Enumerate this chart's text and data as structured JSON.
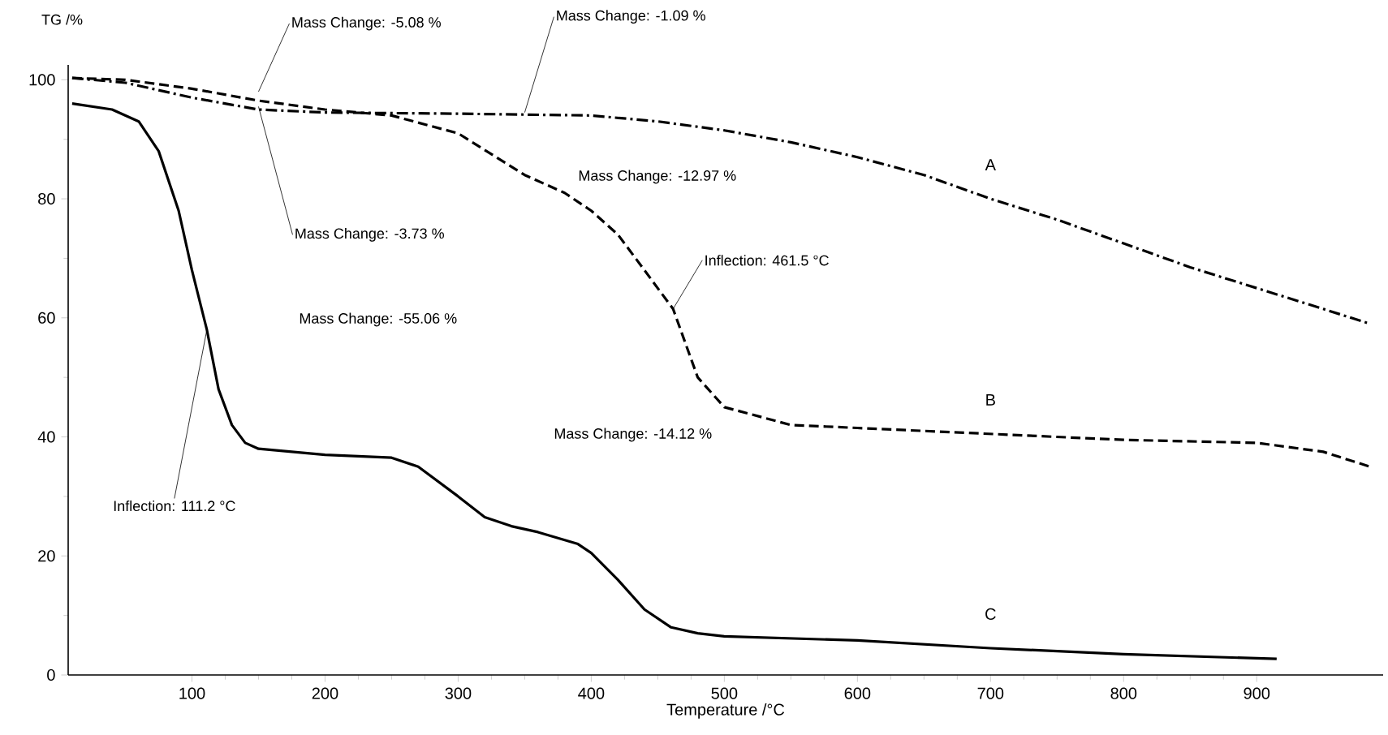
{
  "chart_data": {
    "type": "line",
    "xlabel": "Temperature /°C",
    "ylabel": "TG /%",
    "xlim": [
      7,
      995
    ],
    "ylim": [
      0,
      102.5
    ],
    "xticks": [
      100,
      200,
      300,
      400,
      500,
      600,
      700,
      800,
      900
    ],
    "yticks": [
      0,
      20,
      40,
      60,
      80,
      100
    ],
    "grid": false,
    "legend": false,
    "marker": "none",
    "series": [
      {
        "name": "A",
        "color": "#000000",
        "line_style": "dashdot",
        "x": [
          10,
          50,
          100,
          150,
          200,
          300,
          400,
          450,
          500,
          550,
          600,
          650,
          700,
          750,
          800,
          850,
          900,
          950,
          985
        ],
        "values": [
          100.3,
          99.5,
          97,
          95,
          94.5,
          94.3,
          94,
          93,
          91.5,
          89.5,
          87,
          84,
          80,
          76.5,
          72.5,
          68.5,
          65,
          61.5,
          59
        ]
      },
      {
        "name": "B",
        "color": "#000000",
        "line_style": "dashed",
        "x": [
          10,
          50,
          100,
          150,
          200,
          250,
          300,
          350,
          380,
          400,
          420,
          440,
          461.5,
          480,
          500,
          550,
          600,
          700,
          800,
          900,
          950,
          985
        ],
        "values": [
          100.3,
          100,
          98.5,
          96.5,
          95,
          94,
          91,
          84,
          81,
          78,
          74,
          68,
          61.5,
          50,
          45,
          42,
          41.5,
          40.5,
          39.5,
          39,
          37.5,
          35
        ]
      },
      {
        "name": "C",
        "color": "#000000",
        "line_style": "solid",
        "x": [
          10,
          40,
          60,
          75,
          90,
          100,
          111.2,
          120,
          130,
          140,
          150,
          200,
          250,
          270,
          300,
          320,
          340,
          360,
          390,
          400,
          420,
          440,
          460,
          480,
          500,
          600,
          700,
          800,
          900,
          915
        ],
        "values": [
          96,
          95,
          93,
          88,
          78,
          68,
          58,
          48,
          42,
          39,
          38,
          37,
          36.5,
          35,
          30,
          26.5,
          25,
          24,
          22,
          20.5,
          16,
          11,
          8,
          7,
          6.5,
          5.8,
          4.5,
          3.5,
          2.8,
          2.7
        ]
      }
    ],
    "annotations": [
      {
        "text": "Mass Change: -5.08 %",
        "x": 150,
        "y": 98
      },
      {
        "text": "Mass Change: -1.09 %",
        "x": 350,
        "y": 94.5
      },
      "Mass Change: -12.97 %",
      {
        "text": "Mass Change: -3.73 %",
        "x": 150,
        "y": 95.5
      },
      "Mass Change: -55.06 %",
      {
        "text": "Inflection: 461.5 °C",
        "x": 461.5,
        "y": 61.5
      },
      "Mass Change: -14.12 %",
      {
        "text": "Inflection: 111.2 °C",
        "x": 111.2,
        "y": 58
      }
    ]
  }
}
